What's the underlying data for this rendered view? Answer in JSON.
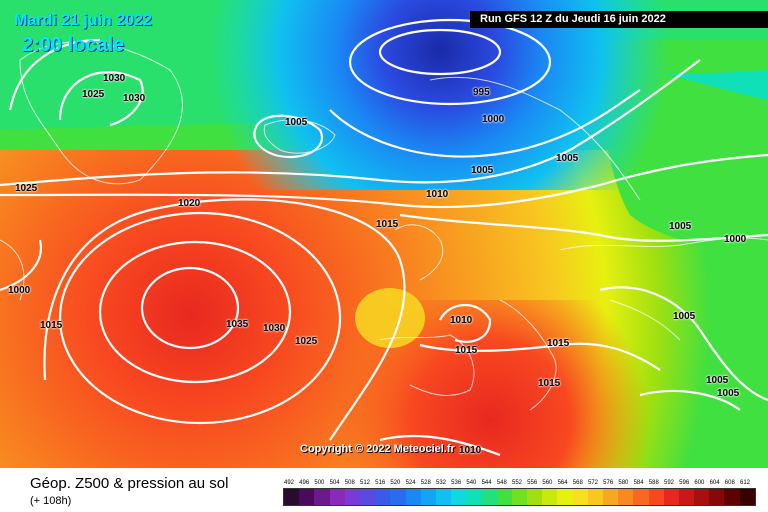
{
  "title": {
    "date": "Mardi 21 juin 2022",
    "time": "2:00 locale"
  },
  "run": "Run GFS 12 Z du Jeudi 16 juin 2022",
  "copyright": "Copyright © 2022 Meteociel.fr",
  "footer": {
    "title": "Géop. Z500 & pression au sol",
    "subtitle": "(+ 108h)"
  },
  "legend": {
    "values": [
      "492",
      "496",
      "500",
      "504",
      "508",
      "512",
      "516",
      "520",
      "524",
      "528",
      "532",
      "536",
      "540",
      "544",
      "548",
      "552",
      "556",
      "560",
      "564",
      "568",
      "572",
      "576",
      "580",
      "584",
      "588",
      "592",
      "596",
      "600",
      "604",
      "608",
      "612"
    ],
    "colors": [
      "#2a0a2e",
      "#4a0a5e",
      "#6a1a8a",
      "#8a2ab8",
      "#7a3ad8",
      "#5a4ae0",
      "#3a5ae8",
      "#2a6cf0",
      "#1a88f4",
      "#14a4f4",
      "#10c0f0",
      "#10d8e0",
      "#10e0b8",
      "#20e080",
      "#40e040",
      "#70e020",
      "#a0e010",
      "#c8e810",
      "#e8f010",
      "#f8e020",
      "#f8c820",
      "#f8a820",
      "#f88820",
      "#f86820",
      "#f84820",
      "#e82820",
      "#c81818",
      "#a81010",
      "#880808",
      "#600000",
      "#380000"
    ]
  },
  "isobars": [
    "1030",
    "1025",
    "1030",
    "1005",
    "995",
    "1000",
    "1005",
    "1005",
    "1025",
    "1020",
    "1010",
    "1015",
    "1005",
    "1000",
    "1000",
    "1015",
    "1020",
    "1035",
    "1030",
    "1025",
    "1010",
    "1015",
    "1015",
    "1005",
    "1015",
    "1005",
    "1005",
    "1010"
  ]
}
